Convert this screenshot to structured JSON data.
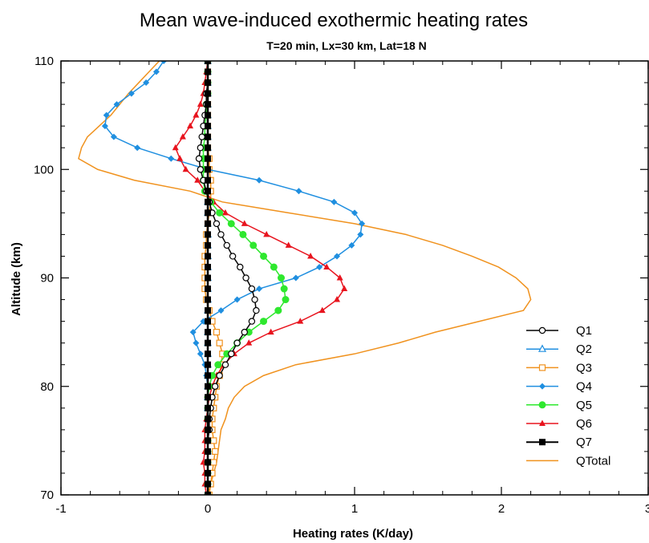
{
  "chart_data": {
    "type": "line",
    "title": "Mean wave-induced exothermic heating rates",
    "subtitle": "T=20 min, Lx=30 km, Lat=18 N",
    "xlabel": "Heating rates (K/day)",
    "ylabel": "Altitude (km)",
    "xlim": [
      -1,
      3
    ],
    "ylim": [
      70,
      110
    ],
    "x_ticks": [
      "-1",
      "0",
      "1",
      "2",
      "3"
    ],
    "y_ticks": [
      "70",
      "80",
      "90",
      "100",
      "110"
    ],
    "grid": false,
    "legend_position": "right",
    "altitudes": [
      70,
      71,
      72,
      73,
      74,
      75,
      76,
      77,
      78,
      79,
      80,
      81,
      82,
      83,
      84,
      85,
      86,
      87,
      88,
      89,
      90,
      91,
      92,
      93,
      94,
      95,
      96,
      97,
      98,
      99,
      100,
      101,
      102,
      103,
      104,
      105,
      106,
      107,
      108,
      109,
      110
    ],
    "series": [
      {
        "name": "Q1",
        "color": "#000000",
        "marker": "circle-open",
        "values": [
          0,
          0,
          0,
          0,
          0,
          0,
          0.01,
          0.01,
          0.02,
          0.03,
          0.05,
          0.08,
          0.12,
          0.16,
          0.2,
          0.25,
          0.3,
          0.33,
          0.32,
          0.3,
          0.26,
          0.22,
          0.17,
          0.13,
          0.09,
          0.06,
          0.03,
          0.01,
          -0.01,
          -0.03,
          -0.05,
          -0.06,
          -0.05,
          -0.04,
          -0.03,
          -0.02,
          -0.01,
          -0.01,
          0,
          0,
          0
        ]
      },
      {
        "name": "Q2",
        "color": "#1f8fe0",
        "marker": "triangle-open",
        "values": [
          0,
          0,
          0,
          0,
          0,
          0,
          0,
          0,
          0,
          0,
          0,
          0,
          0,
          0,
          0,
          0,
          0,
          0,
          0,
          0,
          0,
          0,
          0,
          0,
          0,
          0,
          0,
          0,
          0,
          0,
          0,
          0,
          0,
          0,
          0,
          0,
          0,
          0,
          0,
          0,
          0
        ]
      },
      {
        "name": "Q3",
        "color": "#f0921e",
        "marker": "square-open",
        "values": [
          0.01,
          0.02,
          0.03,
          0.04,
          0.05,
          0.04,
          0.03,
          0.03,
          0.04,
          0.05,
          0.06,
          0.08,
          0.09,
          0.1,
          0.08,
          0.06,
          0.03,
          0.01,
          -0.01,
          -0.02,
          -0.02,
          -0.02,
          -0.02,
          -0.01,
          -0.01,
          0,
          0.01,
          0.02,
          0.02,
          0.02,
          0.01,
          0.01,
          0,
          0,
          0,
          0,
          0,
          0,
          0,
          0,
          0
        ]
      },
      {
        "name": "Q4",
        "color": "#1f8fe0",
        "marker": "diamond",
        "values": [
          0,
          0,
          0,
          0,
          0,
          0,
          0,
          0,
          0,
          0,
          0,
          -0.01,
          -0.02,
          -0.05,
          -0.08,
          -0.1,
          -0.03,
          0.09,
          0.2,
          0.35,
          0.6,
          0.76,
          0.88,
          0.98,
          1.04,
          1.05,
          1.0,
          0.86,
          0.62,
          0.35,
          0.0,
          -0.25,
          -0.48,
          -0.64,
          -0.7,
          -0.69,
          -0.62,
          -0.52,
          -0.42,
          -0.35,
          -0.3
        ]
      },
      {
        "name": "Q5",
        "color": "#2ee82e",
        "marker": "circle-filled",
        "values": [
          0,
          0,
          0,
          0,
          0,
          0,
          0,
          0,
          0,
          0,
          0.01,
          0.03,
          0.07,
          0.13,
          0.2,
          0.28,
          0.38,
          0.48,
          0.53,
          0.52,
          0.5,
          0.45,
          0.38,
          0.31,
          0.24,
          0.16,
          0.08,
          0.02,
          -0.02,
          -0.03,
          -0.03,
          -0.03,
          -0.03,
          -0.02,
          -0.02,
          -0.01,
          -0.01,
          0,
          0,
          0,
          0
        ]
      },
      {
        "name": "Q6",
        "color": "#e8141e",
        "marker": "triangle-filled",
        "values": [
          -0.01,
          -0.02,
          -0.02,
          -0.03,
          -0.02,
          -0.02,
          -0.02,
          -0.01,
          0,
          0.01,
          0.03,
          0.06,
          0.11,
          0.18,
          0.28,
          0.43,
          0.63,
          0.78,
          0.88,
          0.93,
          0.9,
          0.81,
          0.7,
          0.55,
          0.4,
          0.25,
          0.12,
          0.04,
          -0.02,
          -0.07,
          -0.15,
          -0.19,
          -0.22,
          -0.17,
          -0.12,
          -0.08,
          -0.05,
          -0.03,
          -0.02,
          -0.01,
          0
        ]
      },
      {
        "name": "Q7",
        "color": "#000000",
        "marker": "square-filled",
        "values": [
          0,
          0,
          0,
          0,
          0,
          0,
          0,
          0,
          0,
          0,
          0,
          0,
          0,
          0,
          0,
          0,
          0,
          0,
          0,
          0,
          0,
          0,
          0,
          0,
          0,
          0,
          0,
          0,
          0,
          0,
          0,
          0,
          0,
          0,
          0,
          0,
          0,
          0,
          0,
          0,
          0
        ]
      },
      {
        "name": "QTotal",
        "color": "#f0921e",
        "marker": "none",
        "values": [
          0,
          0.02,
          0.04,
          0.06,
          0.07,
          0.08,
          0.09,
          0.12,
          0.14,
          0.18,
          0.25,
          0.38,
          0.6,
          1.0,
          1.3,
          1.55,
          1.85,
          2.15,
          2.2,
          2.18,
          2.1,
          1.98,
          1.8,
          1.6,
          1.35,
          1.0,
          0.55,
          0.1,
          -0.12,
          -0.5,
          -0.75,
          -0.88,
          -0.86,
          -0.82,
          -0.74,
          -0.66,
          -0.6,
          -0.54,
          -0.47,
          -0.4,
          -0.33
        ]
      }
    ]
  }
}
